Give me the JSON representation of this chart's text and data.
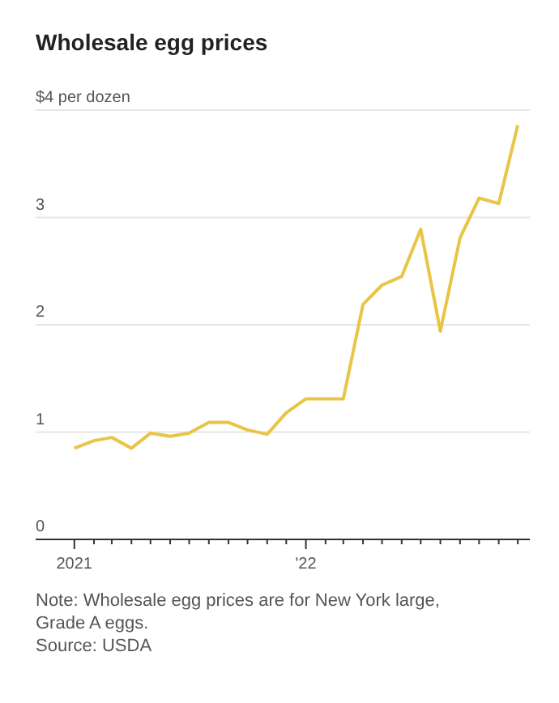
{
  "chart_data": {
    "type": "line",
    "title": "Wholesale egg prices",
    "x": [
      "2021-01",
      "2021-02",
      "2021-03",
      "2021-04",
      "2021-05",
      "2021-06",
      "2021-07",
      "2021-08",
      "2021-09",
      "2021-10",
      "2021-11",
      "2021-12",
      "2022-01",
      "2022-02",
      "2022-03",
      "2022-04",
      "2022-05",
      "2022-06",
      "2022-07",
      "2022-08",
      "2022-09",
      "2022-10",
      "2022-11",
      "2022-12"
    ],
    "series": [
      {
        "color": "#e8c547",
        "values": [
          0.85,
          0.92,
          0.95,
          0.85,
          0.99,
          0.96,
          0.99,
          1.09,
          1.09,
          1.02,
          0.98,
          1.18,
          1.31,
          1.31,
          1.31,
          2.19,
          2.37,
          2.45,
          2.89,
          1.94,
          2.81,
          3.18,
          3.13,
          3.86
        ]
      }
    ],
    "xlim": [
      "2020-11-01",
      "2022-12-20"
    ],
    "xticks": [
      {
        "value": "2021-01",
        "label": "2021"
      },
      {
        "value": "2021-02",
        "label": null
      },
      {
        "value": "2021-03",
        "label": null
      },
      {
        "value": "2021-04",
        "label": null
      },
      {
        "value": "2021-05",
        "label": null
      },
      {
        "value": "2021-06",
        "label": null
      },
      {
        "value": "2021-07",
        "label": null
      },
      {
        "value": "2021-08",
        "label": null
      },
      {
        "value": "2021-09",
        "label": null
      },
      {
        "value": "2021-10",
        "label": null
      },
      {
        "value": "2021-11",
        "label": null
      },
      {
        "value": "2021-12",
        "label": null
      },
      {
        "value": "2022-01",
        "label": "'22"
      },
      {
        "value": "2022-02",
        "label": null
      },
      {
        "value": "2022-03",
        "label": null
      },
      {
        "value": "2022-04",
        "label": null
      },
      {
        "value": "2022-05",
        "label": null
      },
      {
        "value": "2022-06",
        "label": null
      },
      {
        "value": "2022-07",
        "label": null
      },
      {
        "value": "2022-08",
        "label": null
      },
      {
        "value": "2022-09",
        "label": null
      },
      {
        "value": "2022-10",
        "label": null
      },
      {
        "value": "2022-11",
        "label": null
      },
      {
        "value": "2022-12",
        "label": null
      }
    ],
    "ylim": [
      0,
      4
    ],
    "yticks": [
      0,
      1,
      2,
      3,
      {
        "value": 4,
        "label": "$4 per dozen"
      }
    ],
    "grid": "y",
    "marker": "none",
    "line_style": "solid",
    "annotations": [
      "Note: Wholesale egg prices are for New York large, Grade A eggs.",
      "Source: USDA"
    ]
  }
}
